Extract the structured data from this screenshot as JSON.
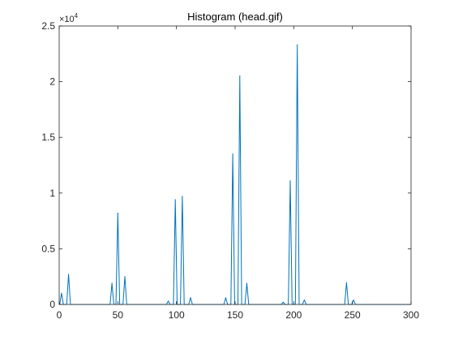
{
  "chart_data": {
    "type": "line",
    "title": "Histogram (head.gif)",
    "xlabel": "",
    "ylabel": "",
    "xlim": [
      0,
      300
    ],
    "ylim": [
      0,
      25000
    ],
    "xticks": [
      0,
      50,
      100,
      150,
      200,
      250,
      300
    ],
    "xtick_labels": [
      "0",
      "50",
      "100",
      "150",
      "200",
      "250",
      "300"
    ],
    "yticks": [
      0,
      5000,
      10000,
      15000,
      20000,
      25000
    ],
    "ytick_labels": [
      "0",
      "0.5",
      "1",
      "1.5",
      "2",
      "2.5"
    ],
    "y_exponent": {
      "base": "×10",
      "power": "4"
    },
    "grid": false,
    "legend": "none",
    "line_color": "#0072BD",
    "peaks": [
      {
        "x": 2,
        "y": 1000
      },
      {
        "x": 8,
        "y": 2700
      },
      {
        "x": 45,
        "y": 1900
      },
      {
        "x": 50,
        "y": 8200
      },
      {
        "x": 56,
        "y": 2500
      },
      {
        "x": 93,
        "y": 300
      },
      {
        "x": 99,
        "y": 9400
      },
      {
        "x": 105,
        "y": 9700
      },
      {
        "x": 112,
        "y": 600
      },
      {
        "x": 142,
        "y": 600
      },
      {
        "x": 148,
        "y": 13500
      },
      {
        "x": 154,
        "y": 20500
      },
      {
        "x": 160,
        "y": 1900
      },
      {
        "x": 191,
        "y": 200
      },
      {
        "x": 197,
        "y": 11100
      },
      {
        "x": 203,
        "y": 23300
      },
      {
        "x": 209,
        "y": 400
      },
      {
        "x": 245,
        "y": 1950
      },
      {
        "x": 251,
        "y": 400
      }
    ]
  }
}
